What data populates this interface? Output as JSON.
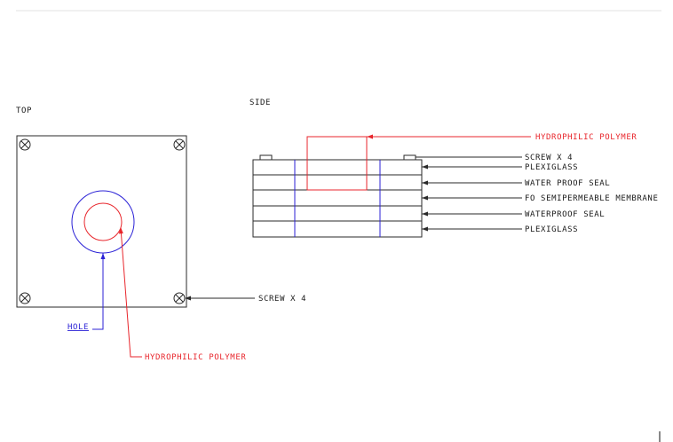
{
  "views": {
    "top": {
      "title": "TOP"
    },
    "side": {
      "title": "SIDE"
    }
  },
  "top_labels": {
    "screw": "SCREW X 4",
    "hole": "HOLE",
    "polymer": "HYDROPHILIC POLYMER"
  },
  "side_labels": {
    "polymer": "HYDROPHILIC POLYMER",
    "screw": "SCREW X 4",
    "layers": [
      "PLEXIGLASS",
      "WATER PROOF SEAL",
      "FO SEMIPERMEABLE MEMBRANE",
      "WATERPROOF SEAL",
      "PLEXIGLASS"
    ]
  },
  "colors": {
    "line": "#2a2a2a",
    "polymer": "#e8262c",
    "hole": "#2b22d6"
  }
}
